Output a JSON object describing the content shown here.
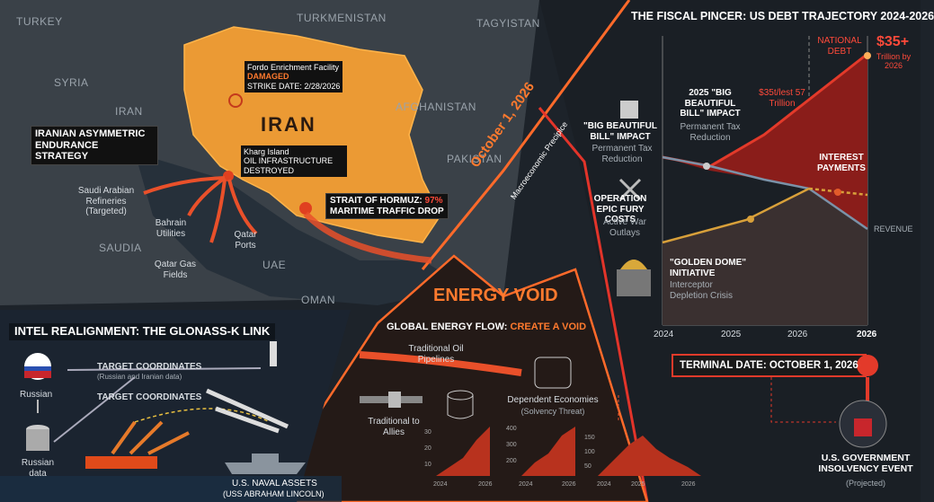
{
  "map": {
    "countries": [
      "TURKEY",
      "TURKMENISTAN",
      "TAGYISTAN",
      "SYRIA",
      "IRAN",
      "AFGHANISTAN",
      "PAKISTAN",
      "SAUDIA",
      "UAE",
      "OMAN"
    ],
    "iran_label": "IRAN",
    "fordo": {
      "name": "Fordo Enrichment Facility",
      "status": "DAMAGED",
      "date": "STRIKE DATE: 2/28/2026"
    },
    "kharg": {
      "name": "Kharg Island",
      "status": "OIL INFRASTRUCTURE DESTROYED"
    },
    "hormuz": {
      "title": "STRAIT OF HORMUZ:",
      "value": "97%",
      "subtitle": "MARITIME TRAFFIC DROP"
    },
    "strategy": "IRANIAN ASYMMETRIC ENDURANCE STRATEGY",
    "targets": [
      "Saudi Arabian Refineries (Targeted)",
      "Bahrain Utilities",
      "Qatar Ports",
      "Qatar Gas Fields"
    ]
  },
  "intel": {
    "title": "INTEL REALIGNMENT: THE GLONASS-K LINK",
    "russian": "Russian",
    "coords_1": "TARGET COORDINATES",
    "coords_1_note": "(Russian and Iranian data)",
    "coords_2": "TARGET COORDINATES",
    "russian_data": "Russian data",
    "naval": "U.S. NAVAL ASSETS",
    "naval_note": "(USS ABRAHAM LINCOLN)"
  },
  "precipice": {
    "date": "October 1, 2026",
    "subtitle": "Macroeconomic Precipice"
  },
  "energy": {
    "title": "ENERGY VOID",
    "flow_title": "GLOBAL ENERGY FLOW:",
    "flow_emphasis": "CREATE A VOID",
    "pipelines": "Traditional Oil Pipelines",
    "dependent": "Dependent Economies",
    "dependent_note": "(Solvency Threat)",
    "allies": "Traditional to Allies",
    "mini_charts": [
      {
        "yticks": [
          "30",
          "20",
          "10"
        ],
        "xticks": [
          "2024",
          "2026"
        ]
      },
      {
        "yticks": [
          "400",
          "300",
          "200"
        ],
        "xticks": [
          "2024",
          "2026"
        ]
      },
      {
        "yticks": [
          "150",
          "100",
          "50"
        ],
        "xticks": [
          "2024",
          "2025",
          "2026"
        ]
      }
    ]
  },
  "fiscal": {
    "title": "THE FISCAL PINCER: US DEBT TRAJECTORY 2024-2026",
    "national_debt": "NATIONAL DEBT",
    "debt_value": "$35+",
    "debt_note": "Trillion by 2026",
    "bill_2025": "2025 \"BIG BEAUTIFUL BILL\" IMPACT",
    "bill_2025_note": "Permanent Tax Reduction",
    "range_note": "$35t/lest 57 Trillion",
    "bill": "\"BIG BEAUTIFUL BILL\" IMPACT",
    "bill_note": "Permanent Tax Reduction",
    "fury": "OPERATION EPIC FURY COSTS",
    "fury_note": "Active War Outlays",
    "dome": "\"GOLDEN DOME\" INITIATIVE",
    "dome_note": "Interceptor Depletion Crisis",
    "interest": "INTEREST PAYMENTS",
    "revenue": "REVENUE",
    "xticks": [
      "2024",
      "2025",
      "2026",
      "2026"
    ]
  },
  "terminal": {
    "date": "TERMINAL DATE: OCTOBER 1, 2026",
    "event": "U.S. GOVERNMENT INSOLVENCY EVENT",
    "note": "(Projected)"
  }
}
